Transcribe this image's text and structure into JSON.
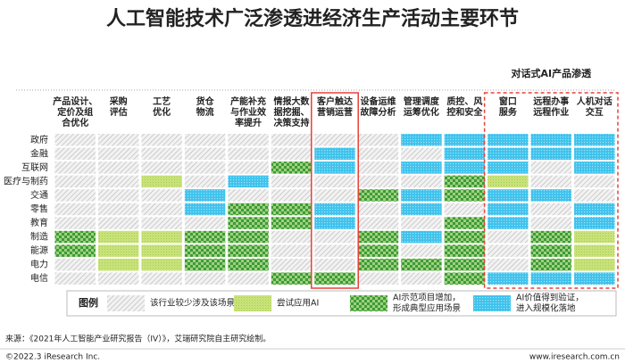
{
  "chart_data": {
    "type": "matrix",
    "title": "人工智能技术广泛渗透进经济生产活动主要环节",
    "annotation": "对话式AI产品渗透",
    "highlight_columns": [
      6,
      10,
      11,
      12
    ],
    "columns": [
      [
        "产品设计、",
        "定价及组",
        "合优化"
      ],
      [
        "采购",
        "评估"
      ],
      [
        "工艺",
        "优化"
      ],
      [
        "货仓",
        "物流"
      ],
      [
        "产能补充",
        "与作业效",
        "率提升"
      ],
      [
        "情报大数",
        "据挖掘、",
        "决策支持"
      ],
      [
        "客户触达",
        "营销运营"
      ],
      [
        "设备运维",
        "故障分析"
      ],
      [
        "管理调度",
        "运筹优化"
      ],
      [
        "质控、风",
        "控和安全"
      ],
      [
        "窗口",
        "服务"
      ],
      [
        "远程办事",
        "远程作业"
      ],
      [
        "人机对话",
        "交互"
      ]
    ],
    "rows": [
      "政府",
      "金融",
      "互联网",
      "医疗与制药",
      "交通",
      "零售",
      "教育",
      "制造",
      "能源",
      "电力",
      "电信"
    ],
    "levels": [
      [
        0,
        0,
        0,
        0,
        0,
        0,
        0,
        0,
        3,
        3,
        3,
        3,
        3
      ],
      [
        0,
        0,
        0,
        0,
        0,
        0,
        3,
        0,
        0,
        3,
        3,
        3,
        3
      ],
      [
        0,
        0,
        0,
        0,
        0,
        2,
        3,
        0,
        3,
        3,
        3,
        0,
        3
      ],
      [
        0,
        0,
        1,
        0,
        3,
        0,
        0,
        0,
        0,
        2,
        1,
        0,
        0
      ],
      [
        0,
        0,
        0,
        3,
        0,
        0,
        0,
        2,
        3,
        2,
        3,
        3,
        0
      ],
      [
        0,
        0,
        0,
        3,
        2,
        2,
        3,
        0,
        3,
        0,
        3,
        0,
        3
      ],
      [
        0,
        0,
        0,
        0,
        2,
        2,
        3,
        0,
        0,
        2,
        3,
        0,
        3
      ],
      [
        2,
        1,
        1,
        2,
        2,
        0,
        0,
        2,
        3,
        2,
        0,
        2,
        1
      ],
      [
        2,
        1,
        1,
        2,
        2,
        0,
        0,
        2,
        0,
        2,
        0,
        2,
        1
      ],
      [
        0,
        1,
        1,
        2,
        2,
        0,
        0,
        2,
        2,
        2,
        0,
        2,
        1
      ],
      [
        0,
        0,
        0,
        0,
        0,
        2,
        2,
        0,
        0,
        2,
        3,
        3,
        3
      ]
    ],
    "legend": {
      "title": "图例",
      "items": [
        [
          "该行业较少涉及该场景"
        ],
        [
          "尝试应用AI"
        ],
        [
          "AI示范项目增加，",
          "形成典型应用场景"
        ],
        [
          "AI价值得到验证，",
          "进入规模化落地"
        ]
      ]
    },
    "source": "来源：《2021年人工智能产业研究报告（IV）》，艾瑞研究院自主研究绘制。",
    "copyright": "©2022.3 iResearch Inc.",
    "url": "www.iresearch.com.cn"
  }
}
